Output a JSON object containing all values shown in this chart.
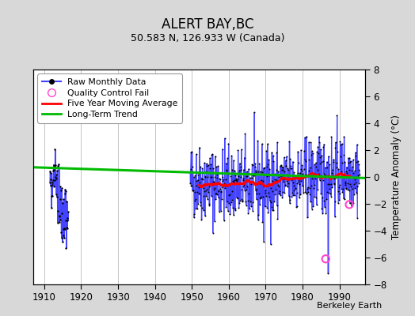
{
  "title": "ALERT BAY,BC",
  "subtitle": "50.583 N, 126.933 W (Canada)",
  "ylabel": "Temperature Anomaly (°C)",
  "credit": "Berkeley Earth",
  "xlim": [
    1907,
    1997
  ],
  "ylim": [
    -8,
    8
  ],
  "xticks": [
    1910,
    1920,
    1930,
    1940,
    1950,
    1960,
    1970,
    1980,
    1990
  ],
  "yticks": [
    -8,
    -6,
    -4,
    -2,
    0,
    2,
    4,
    6,
    8
  ],
  "background_color": "#d8d8d8",
  "plot_bg_color": "#ffffff",
  "grid_color": "#bbbbbb",
  "raw_color": "#4444ff",
  "ma_color": "#ff0000",
  "trend_color": "#00bb00",
  "qc_color": "#ff44cc",
  "early_years_start": 1911.5,
  "early_years_end": 1916.5,
  "main_years_start": 1949.5,
  "main_years_end": 1995.5,
  "trend_x": [
    1907,
    1997
  ],
  "trend_y": [
    0.72,
    -0.08
  ],
  "qc_points": [
    [
      1986.3,
      -6.1
    ],
    [
      1992.7,
      -2.05
    ]
  ]
}
